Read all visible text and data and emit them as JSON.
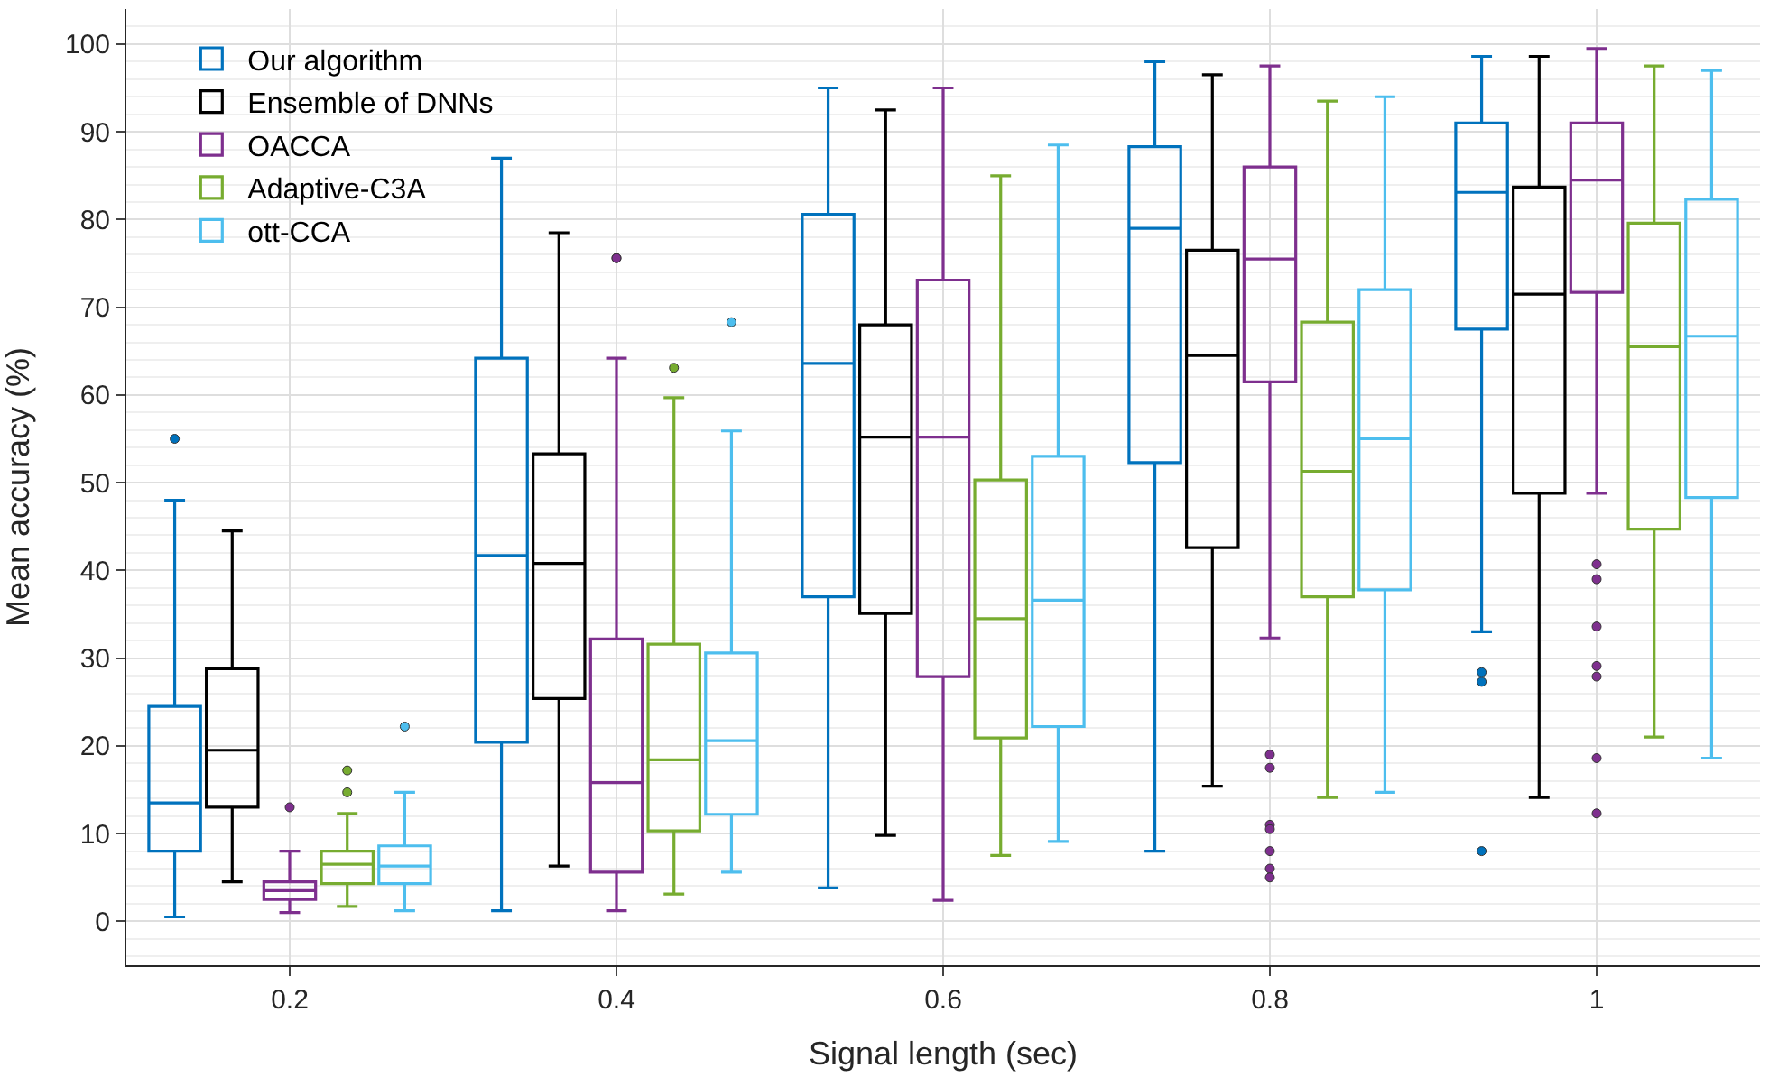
{
  "chart_data": {
    "type": "box",
    "xlabel": "Signal length (sec)",
    "ylabel": "Mean accuracy (%)",
    "categories": [
      "0.2",
      "0.4",
      "0.6",
      "0.8",
      "1"
    ],
    "ylim": [
      -5,
      104
    ],
    "yticks": [
      0,
      10,
      20,
      30,
      40,
      50,
      60,
      70,
      80,
      90,
      100
    ],
    "grid": true,
    "legend": "top left",
    "series": [
      {
        "name": "Our algorithm",
        "color": "#0072bd",
        "boxes": [
          {
            "low": 0.5,
            "q1": 8,
            "median": 13.5,
            "q3": 24.5,
            "high": 48,
            "outliers": [
              55
            ]
          },
          {
            "low": 1.2,
            "q1": 20.4,
            "median": 41.7,
            "q3": 64.2,
            "high": 87
          },
          {
            "low": 3.8,
            "q1": 37,
            "median": 63.6,
            "q3": 80.6,
            "high": 95
          },
          {
            "low": 8,
            "q1": 52.3,
            "median": 79,
            "q3": 88.3,
            "high": 98
          },
          {
            "low": 33,
            "q1": 67.5,
            "median": 83.1,
            "q3": 91,
            "high": 98.6,
            "outliers": [
              28.4,
              27.3,
              8
            ]
          }
        ]
      },
      {
        "name": "Ensemble of DNNs",
        "color": "#000000",
        "boxes": [
          {
            "low": 4.5,
            "q1": 13,
            "median": 19.5,
            "q3": 28.8,
            "high": 44.5
          },
          {
            "low": 6.3,
            "q1": 25.4,
            "median": 40.8,
            "q3": 53.3,
            "high": 78.5
          },
          {
            "low": 9.8,
            "q1": 35.1,
            "median": 55.2,
            "q3": 68,
            "high": 92.5
          },
          {
            "low": 15.4,
            "q1": 42.6,
            "median": 64.5,
            "q3": 76.5,
            "high": 96.5
          },
          {
            "low": 14.1,
            "q1": 48.8,
            "median": 71.5,
            "q3": 83.7,
            "high": 98.6
          }
        ]
      },
      {
        "name": "OACCA",
        "color": "#7e2f8e",
        "boxes": [
          {
            "low": 1,
            "q1": 2.5,
            "median": 3.5,
            "q3": 4.5,
            "high": 8,
            "outliers": [
              13
            ]
          },
          {
            "low": 1.2,
            "q1": 5.6,
            "median": 15.8,
            "q3": 32.2,
            "high": 64.2,
            "outliers": [
              75.6,
              75.6
            ]
          },
          {
            "low": 2.4,
            "q1": 27.9,
            "median": 55.2,
            "q3": 73.1,
            "high": 95
          },
          {
            "low": 32.3,
            "q1": 61.5,
            "median": 75.5,
            "q3": 86,
            "high": 97.5,
            "outliers": [
              19,
              17.5,
              11,
              10.5,
              8,
              6,
              5
            ]
          },
          {
            "low": 48.8,
            "q1": 71.7,
            "median": 84.5,
            "q3": 91,
            "high": 99.5,
            "outliers": [
              40.7,
              39,
              33.6,
              29.1,
              27.9,
              18.6,
              12.3
            ]
          }
        ]
      },
      {
        "name": "Adaptive-C3A",
        "color": "#77ac30",
        "boxes": [
          {
            "low": 1.7,
            "q1": 4.3,
            "median": 6.5,
            "q3": 8,
            "high": 12.3,
            "outliers": [
              14.7,
              17.2
            ]
          },
          {
            "low": 3.1,
            "q1": 10.3,
            "median": 18.4,
            "q3": 31.6,
            "high": 59.7,
            "outliers": [
              63.1
            ]
          },
          {
            "low": 7.5,
            "q1": 20.9,
            "median": 34.5,
            "q3": 50.3,
            "high": 85
          },
          {
            "low": 14.1,
            "q1": 37,
            "median": 51.3,
            "q3": 68.3,
            "high": 93.5
          },
          {
            "low": 21,
            "q1": 44.7,
            "median": 65.5,
            "q3": 79.6,
            "high": 97.5
          }
        ]
      },
      {
        "name": "ott-CCA",
        "color": "#4dbeee",
        "boxes": [
          {
            "low": 1.2,
            "q1": 4.3,
            "median": 6.3,
            "q3": 8.6,
            "high": 14.7,
            "outliers": [
              22.2
            ]
          },
          {
            "low": 5.6,
            "q1": 12.2,
            "median": 20.6,
            "q3": 30.6,
            "high": 55.9,
            "outliers": [
              68.3
            ]
          },
          {
            "low": 9.1,
            "q1": 22.2,
            "median": 36.6,
            "q3": 53,
            "high": 88.5
          },
          {
            "low": 14.7,
            "q1": 37.8,
            "median": 55,
            "q3": 72,
            "high": 94
          },
          {
            "low": 18.6,
            "q1": 48.3,
            "median": 66.7,
            "q3": 82.3,
            "high": 97
          }
        ]
      }
    ]
  }
}
